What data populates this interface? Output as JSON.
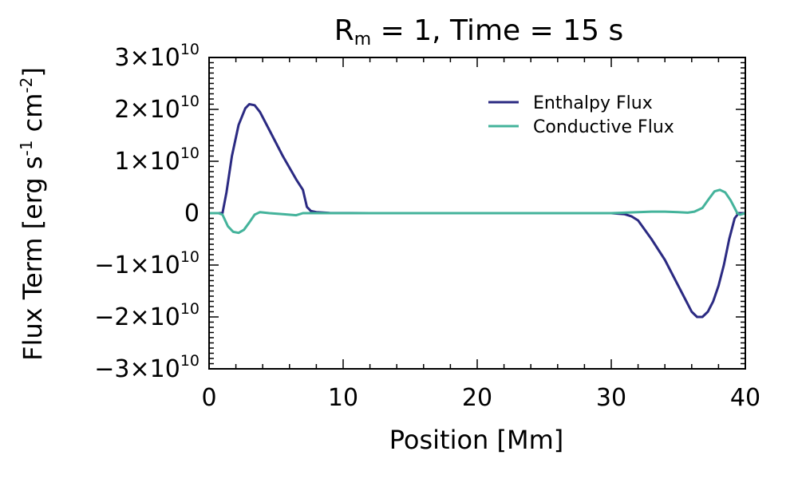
{
  "chart_data": {
    "type": "line",
    "title": {
      "main": "R",
      "subscript": "m",
      "rest": " = 1, Time = 15 s"
    },
    "xlabel": "Position [Mm]",
    "ylabel": {
      "prefix": "Flux Term [erg s",
      "exp1": "-1",
      "mid": " cm",
      "exp2": "-2",
      "suffix": "]"
    },
    "xlim": [
      0,
      40
    ],
    "ylim": [
      -30000000000.0,
      30000000000.0
    ],
    "x_ticks": [
      {
        "value": 0,
        "label": "0"
      },
      {
        "value": 10,
        "label": "10"
      },
      {
        "value": 20,
        "label": "20"
      },
      {
        "value": 30,
        "label": "30"
      },
      {
        "value": 40,
        "label": "40"
      }
    ],
    "y_ticks": [
      {
        "value": 30000000000.0,
        "mant": "3×10",
        "exp": "10"
      },
      {
        "value": 20000000000.0,
        "mant": "2×10",
        "exp": "10"
      },
      {
        "value": 10000000000.0,
        "mant": "1×10",
        "exp": "10"
      },
      {
        "value": 0,
        "mant": "0",
        "exp": ""
      },
      {
        "value": -10000000000.0,
        "mant": "−1×10",
        "exp": "10"
      },
      {
        "value": -20000000000.0,
        "mant": "−2×10",
        "exp": "10"
      },
      {
        "value": -30000000000.0,
        "mant": "−3×10",
        "exp": "10"
      }
    ],
    "grid": false,
    "legend_position": "top-right",
    "series": [
      {
        "name": "Enthalpy Flux",
        "color": "#2b2a82",
        "x": [
          0,
          0.5,
          1.0,
          1.3,
          1.7,
          2.2,
          2.7,
          3.0,
          3.4,
          3.8,
          4.5,
          5.5,
          6.5,
          7.0,
          7.3,
          7.6,
          8.0,
          9.0,
          12,
          16,
          20,
          24,
          28,
          30,
          31,
          31.5,
          32,
          33,
          34,
          35,
          35.6,
          36.0,
          36.4,
          36.8,
          37.2,
          37.6,
          38.0,
          38.4,
          38.8,
          39.2,
          39.5,
          39.8,
          40
        ],
        "y": [
          0,
          0,
          0,
          4000000000.0,
          11000000000.0,
          17000000000.0,
          20200000000.0,
          21000000000.0,
          20800000000.0,
          19500000000.0,
          16000000000.0,
          11000000000.0,
          6500000000.0,
          4500000000.0,
          1200000000.0,
          400000000.0,
          200000000.0,
          50000000.0,
          0,
          0,
          0,
          0,
          0,
          0,
          -200000000.0,
          -600000000.0,
          -1400000000.0,
          -5000000000.0,
          -9000000000.0,
          -14000000000.0,
          -17000000000.0,
          -19000000000.0,
          -20000000000.0,
          -20000000000.0,
          -19000000000.0,
          -17000000000.0,
          -14000000000.0,
          -10000000000.0,
          -5000000000.0,
          -1000000000.0,
          0,
          0,
          0
        ]
      },
      {
        "name": "Conductive Flux",
        "color": "#44b39b",
        "x": [
          0,
          0.7,
          1.0,
          1.4,
          1.8,
          2.2,
          2.6,
          3.0,
          3.4,
          3.8,
          4.5,
          5.5,
          6.5,
          7.0,
          8.0,
          12,
          16,
          20,
          24,
          28,
          30,
          31,
          32,
          33,
          34,
          35,
          35.7,
          36.2,
          36.8,
          37.3,
          37.7,
          38.1,
          38.5,
          38.9,
          39.2,
          39.4,
          39.6,
          40
        ],
        "y": [
          0,
          0,
          -300000000.0,
          -2500000000.0,
          -3600000000.0,
          -3800000000.0,
          -3200000000.0,
          -1800000000.0,
          -300000000.0,
          200000000.0,
          0,
          -200000000.0,
          -400000000.0,
          0,
          0,
          0,
          0,
          0,
          0,
          0,
          0,
          100000000.0,
          200000000.0,
          300000000.0,
          300000000.0,
          200000000.0,
          100000000.0,
          300000000.0,
          1000000000.0,
          2800000000.0,
          4200000000.0,
          4500000000.0,
          4000000000.0,
          2500000000.0,
          1000000000.0,
          0,
          -300000000.0,
          0
        ]
      }
    ]
  }
}
